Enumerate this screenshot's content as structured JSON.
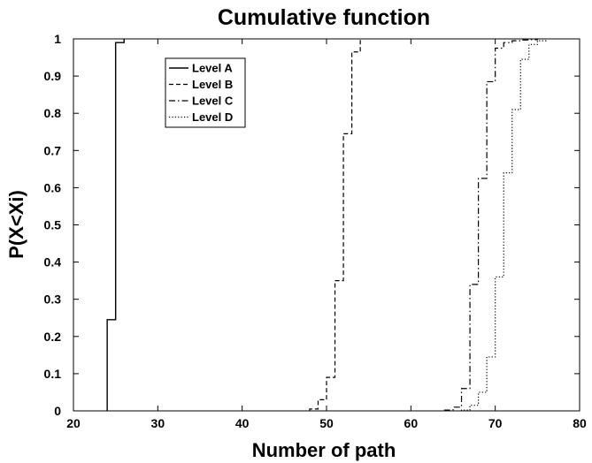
{
  "chart_data": {
    "type": "line",
    "title": "Cumulative function",
    "xlabel": "Number of path",
    "ylabel": "P(X<Xi)",
    "xlim": [
      20,
      80
    ],
    "ylim": [
      0,
      1
    ],
    "xticks": [
      "20",
      "30",
      "40",
      "50",
      "60",
      "70",
      "80"
    ],
    "yticks": [
      "0",
      "0.1",
      "0.2",
      "0.3",
      "0.4",
      "0.5",
      "0.6",
      "0.7",
      "0.8",
      "0.9",
      "1"
    ],
    "grid": false,
    "legend_position": "top-left",
    "series": [
      {
        "name": "Level A",
        "line_style": "solid",
        "color": "#000000",
        "x": [
          24,
          24,
          25,
          25,
          26,
          26
        ],
        "y": [
          0,
          0.245,
          0.245,
          0.99,
          0.99,
          1.0
        ]
      },
      {
        "name": "Level B",
        "line_style": "dashed",
        "color": "#000000",
        "x": [
          48,
          48,
          49,
          49,
          50,
          50,
          51,
          51,
          52,
          52,
          53,
          53,
          54,
          54
        ],
        "y": [
          0,
          0.005,
          0.005,
          0.03,
          0.03,
          0.09,
          0.09,
          0.35,
          0.35,
          0.745,
          0.745,
          0.965,
          0.965,
          1.0
        ]
      },
      {
        "name": "Level C",
        "line_style": "dashdot",
        "color": "#000000",
        "x": [
          64,
          64,
          65,
          65,
          66,
          66,
          67,
          67,
          68,
          68,
          69,
          69,
          70,
          70,
          71,
          71,
          72,
          72,
          73,
          73,
          74,
          74,
          75,
          75
        ],
        "y": [
          0,
          0.002,
          0.002,
          0.01,
          0.01,
          0.06,
          0.06,
          0.34,
          0.34,
          0.625,
          0.625,
          0.885,
          0.885,
          0.975,
          0.975,
          0.99,
          0.99,
          0.995,
          0.995,
          0.997,
          0.997,
          0.998,
          0.998,
          1.0
        ]
      },
      {
        "name": "Level D",
        "line_style": "dotted",
        "color": "#000000",
        "x": [
          66,
          66,
          67,
          67,
          68,
          68,
          69,
          69,
          70,
          70,
          71,
          71,
          72,
          72,
          73,
          73,
          74,
          74,
          75,
          75,
          76,
          76
        ],
        "y": [
          0,
          0.002,
          0.002,
          0.015,
          0.015,
          0.05,
          0.05,
          0.145,
          0.145,
          0.36,
          0.36,
          0.64,
          0.64,
          0.81,
          0.81,
          0.945,
          0.945,
          0.985,
          0.985,
          0.995,
          0.995,
          1.0
        ]
      }
    ]
  }
}
